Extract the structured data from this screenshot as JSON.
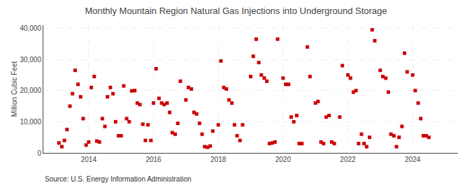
{
  "chart_data": {
    "type": "scatter",
    "title": "Monthly Mountain Region Natural Gas Injections into Underground Storage",
    "ylabel": "Million Cubic Feet",
    "annotations": [
      "Source: U.S. Energy Information Administration"
    ],
    "color": "#cc0000",
    "marker": "square",
    "grid": true,
    "xlim": [
      2012.6,
      2025.4
    ],
    "ylim": [
      0,
      41000
    ],
    "xticks": [
      2014,
      2016,
      2018,
      2020,
      2022,
      2024
    ],
    "yticks": [
      0,
      {
        "value": 10000,
        "label": "10,000"
      },
      {
        "value": 20000,
        "label": "20,000"
      },
      {
        "value": 30000,
        "label": "30,000"
      },
      {
        "value": 40000,
        "label": "40,000"
      }
    ],
    "x": [
      2013.08,
      2013.17,
      2013.25,
      2013.33,
      2013.42,
      2013.5,
      2013.58,
      2013.67,
      2013.75,
      2013.83,
      2013.92,
      2014.0,
      2014.08,
      2014.17,
      2014.25,
      2014.33,
      2014.42,
      2014.5,
      2014.58,
      2014.67,
      2014.75,
      2014.83,
      2014.92,
      2015.0,
      2015.08,
      2015.17,
      2015.25,
      2015.33,
      2015.42,
      2015.5,
      2015.58,
      2015.67,
      2015.75,
      2015.83,
      2015.92,
      2016.0,
      2016.08,
      2016.17,
      2016.25,
      2016.33,
      2016.42,
      2016.5,
      2016.58,
      2016.67,
      2016.75,
      2016.83,
      2017.0,
      2017.08,
      2017.17,
      2017.25,
      2017.33,
      2017.42,
      2017.5,
      2017.58,
      2017.67,
      2017.75,
      2017.83,
      2018.0,
      2018.08,
      2018.17,
      2018.25,
      2018.33,
      2018.42,
      2018.5,
      2018.58,
      2018.67,
      2018.75,
      2019.0,
      2019.08,
      2019.17,
      2019.25,
      2019.33,
      2019.42,
      2019.5,
      2019.58,
      2019.67,
      2019.75,
      2019.83,
      2020.0,
      2020.08,
      2020.17,
      2020.25,
      2020.33,
      2020.42,
      2020.5,
      2020.58,
      2020.75,
      2020.83,
      2021.0,
      2021.08,
      2021.17,
      2021.25,
      2021.33,
      2021.42,
      2021.5,
      2021.58,
      2021.75,
      2021.83,
      2022.0,
      2022.08,
      2022.17,
      2022.25,
      2022.33,
      2022.42,
      2022.5,
      2022.58,
      2022.67,
      2022.75,
      2022.83,
      2023.0,
      2023.08,
      2023.17,
      2023.25,
      2023.33,
      2023.42,
      2023.5,
      2023.58,
      2023.67,
      2023.75,
      2023.83,
      2024.0,
      2024.08,
      2024.17,
      2024.25,
      2024.33,
      2024.42,
      2024.5
    ],
    "values": [
      3200,
      2000,
      4000,
      7500,
      15000,
      19000,
      26500,
      22000,
      18000,
      11000,
      2500,
      3500,
      21000,
      24500,
      3800,
      3500,
      11000,
      8500,
      18000,
      21000,
      19000,
      10000,
      5500,
      5500,
      21500,
      11000,
      10000,
      19900,
      20000,
      16000,
      15500,
      9200,
      4000,
      9000,
      4000,
      16000,
      27000,
      17500,
      16000,
      15500,
      16000,
      13000,
      6500,
      6000,
      9500,
      23000,
      17000,
      21000,
      20500,
      13000,
      12500,
      9500,
      6000,
      2000,
      1800,
      2200,
      7000,
      9000,
      29500,
      21000,
      20500,
      17000,
      16000,
      9000,
      5500,
      4000,
      9000,
      24500,
      31000,
      36500,
      29000,
      25000,
      24000,
      23000,
      3000,
      3200,
      3500,
      36500,
      24000,
      22000,
      22000,
      11500,
      10000,
      12000,
      3000,
      3000,
      34000,
      24500,
      16000,
      16500,
      3500,
      3000,
      11500,
      12000,
      3500,
      3000,
      11500,
      28000,
      25000,
      24000,
      19500,
      20000,
      3000,
      6000,
      3000,
      2000,
      5000,
      39500,
      36000,
      26500,
      24500,
      24000,
      19500,
      6000,
      5500,
      2000,
      5000,
      8500,
      32000,
      26000,
      25000,
      20000,
      16000,
      11000,
      5500,
      5500,
      5000
    ]
  }
}
